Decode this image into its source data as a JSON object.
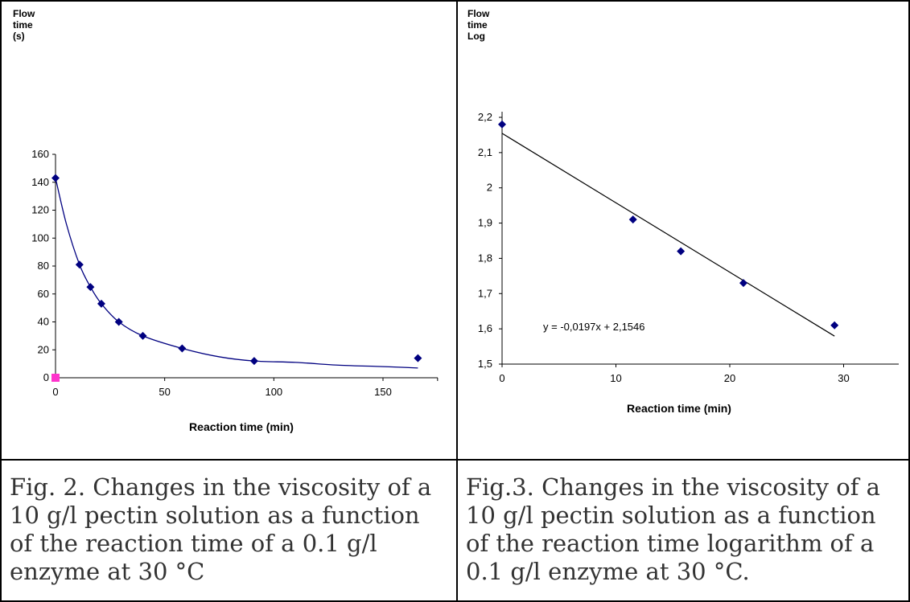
{
  "chart_data": [
    {
      "type": "scatter",
      "ylabel": [
        "Flow",
        "time",
        "(s)"
      ],
      "xlabel": "Reaction time (min)",
      "xlim": [
        0,
        175
      ],
      "ylim": [
        0,
        160
      ],
      "xticks": [
        "0",
        "50",
        "100",
        "150"
      ],
      "yticks": [
        "0",
        "20",
        "40",
        "60",
        "80",
        "100",
        "120",
        "140",
        "160"
      ],
      "point_color": "#000080",
      "line_color": "#000080",
      "start_marker_color": "#ff33cc",
      "points": [
        {
          "x": 0,
          "y": 143
        },
        {
          "x": 11,
          "y": 81
        },
        {
          "x": 16,
          "y": 65
        },
        {
          "x": 21,
          "y": 53
        },
        {
          "x": 29,
          "y": 40
        },
        {
          "x": 40,
          "y": 30
        },
        {
          "x": 58,
          "y": 21
        },
        {
          "x": 91,
          "y": 12
        },
        {
          "x": 166,
          "y": 14
        }
      ],
      "start_marker": {
        "x": 0,
        "y": 0
      },
      "fit_line": [
        {
          "x": 0,
          "y": 143
        },
        {
          "x": 5,
          "y": 110
        },
        {
          "x": 11,
          "y": 81
        },
        {
          "x": 16,
          "y": 65
        },
        {
          "x": 21,
          "y": 53
        },
        {
          "x": 29,
          "y": 40
        },
        {
          "x": 40,
          "y": 30
        },
        {
          "x": 58,
          "y": 21
        },
        {
          "x": 75,
          "y": 15
        },
        {
          "x": 91,
          "y": 12
        },
        {
          "x": 110,
          "y": 11
        },
        {
          "x": 130,
          "y": 9
        },
        {
          "x": 150,
          "y": 8
        },
        {
          "x": 166,
          "y": 7
        }
      ]
    },
    {
      "type": "scatter",
      "ylabel": [
        "Flow",
        "time",
        "Log"
      ],
      "xlabel": "Reaction time (min)",
      "xlim": [
        0,
        35
      ],
      "ylim": [
        1.5,
        2.2
      ],
      "xticks": [
        "0",
        "10",
        "20",
        "30"
      ],
      "xtick_values": [
        0,
        10,
        20,
        30
      ],
      "yticks": [
        "1,5",
        "1,6",
        "1,7",
        "1,8",
        "1,9",
        "2",
        "2,1",
        "2,2"
      ],
      "ytick_values": [
        1.5,
        1.6,
        1.7,
        1.8,
        1.9,
        2.0,
        2.1,
        2.2
      ],
      "point_color": "#000080",
      "line_color": "#000000",
      "points": [
        {
          "x": 0,
          "y": 2.18
        },
        {
          "x": 11.5,
          "y": 1.91
        },
        {
          "x": 15.7,
          "y": 1.82
        },
        {
          "x": 21.2,
          "y": 1.73
        },
        {
          "x": 29.2,
          "y": 1.61
        }
      ],
      "trendline": {
        "slope": -0.0197,
        "intercept": 2.1546,
        "x_from": 0,
        "x_to": 29.2
      },
      "equation": "y = -0,0197x + 2,1546"
    }
  ],
  "captions": {
    "left": "Fig. 2. Changes in the viscosity of a 10 g/l pectin solution as a function of the reaction time of a 0.1 g/l enzyme at 30 °C",
    "right": "Fig.3. Changes in the viscosity of a 10 g/l pectin solution as a function of the reaction time logarithm of a 0.1 g/l enzyme at 30 °C."
  }
}
